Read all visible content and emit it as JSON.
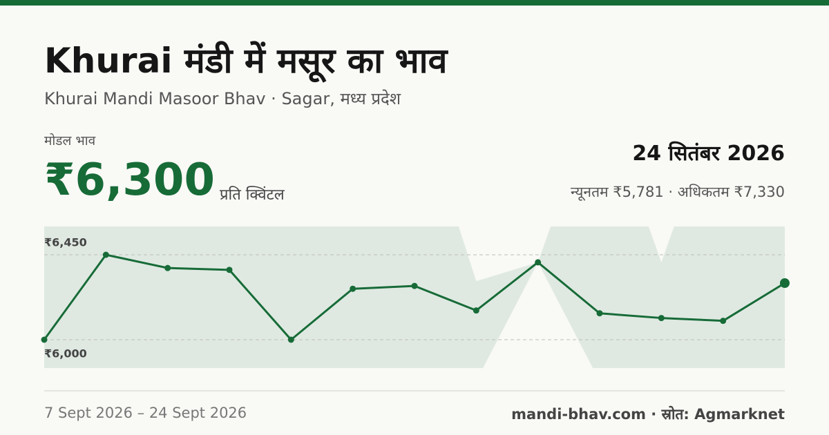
{
  "header": {
    "title": "Khurai मंडी में मसूर का भाव",
    "subtitle": "Khurai Mandi Masoor Bhav · Sagar, मध्य प्रदेश"
  },
  "price": {
    "label": "मोडल भाव",
    "value": "₹6,300",
    "unit": "प्रति क्विंटल",
    "date": "24 सितंबर 2026",
    "range": "न्यूनतम ₹5,781 · अधिकतम ₹7,330"
  },
  "footer": {
    "period": "7 Sept 2026 – 24 Sept 2026",
    "source": "mandi-bhav.com · स्रोत: Agmarknet"
  },
  "chart_data": {
    "type": "line",
    "color": "#176b37",
    "band_color": "#dfe9e2",
    "values": [
      6000,
      6450,
      6380,
      6370,
      6000,
      6270,
      6285,
      6155,
      6410,
      6140,
      6115,
      6100,
      6300
    ],
    "band": {
      "low": [
        5781,
        5781,
        5781,
        5781,
        5781,
        5781,
        5781,
        5781,
        6410,
        5781,
        5781,
        5781,
        5781
      ],
      "high": [
        7330,
        7330,
        7330,
        7330,
        7330,
        7330,
        7330,
        6310,
        6410,
        7330,
        6410,
        7330,
        7330
      ]
    },
    "ylim": [
      5850,
      6600
    ],
    "yticks": [
      {
        "value": 6000,
        "label": "₹6,000"
      },
      {
        "value": 6450,
        "label": "₹6,450"
      }
    ],
    "grid": true
  }
}
